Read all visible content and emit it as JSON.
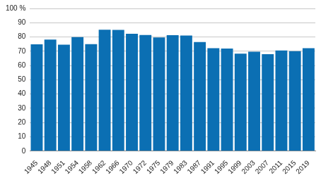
{
  "chart_data": {
    "type": "bar",
    "categories": [
      "1945",
      "1948",
      "1951",
      "1954",
      "1958",
      "1962",
      "1966",
      "1970",
      "1972",
      "1975",
      "1979",
      "1983",
      "1987",
      "1991",
      "1995",
      "1999",
      "2003",
      "2007",
      "2011",
      "2015",
      "2019"
    ],
    "values": [
      74.9,
      78.2,
      74.6,
      79.9,
      75.0,
      85.1,
      84.9,
      82.2,
      81.4,
      79.7,
      81.2,
      81.0,
      76.4,
      72.1,
      71.9,
      68.3,
      69.7,
      67.9,
      70.5,
      70.1,
      72.1
    ],
    "color": "#0b6fb3",
    "ylim": [
      0,
      100
    ],
    "yticks": [
      0,
      10,
      20,
      30,
      40,
      50,
      60,
      70,
      80,
      90,
      {
        "value": 100,
        "label": "100 %"
      }
    ],
    "grid": true
  }
}
